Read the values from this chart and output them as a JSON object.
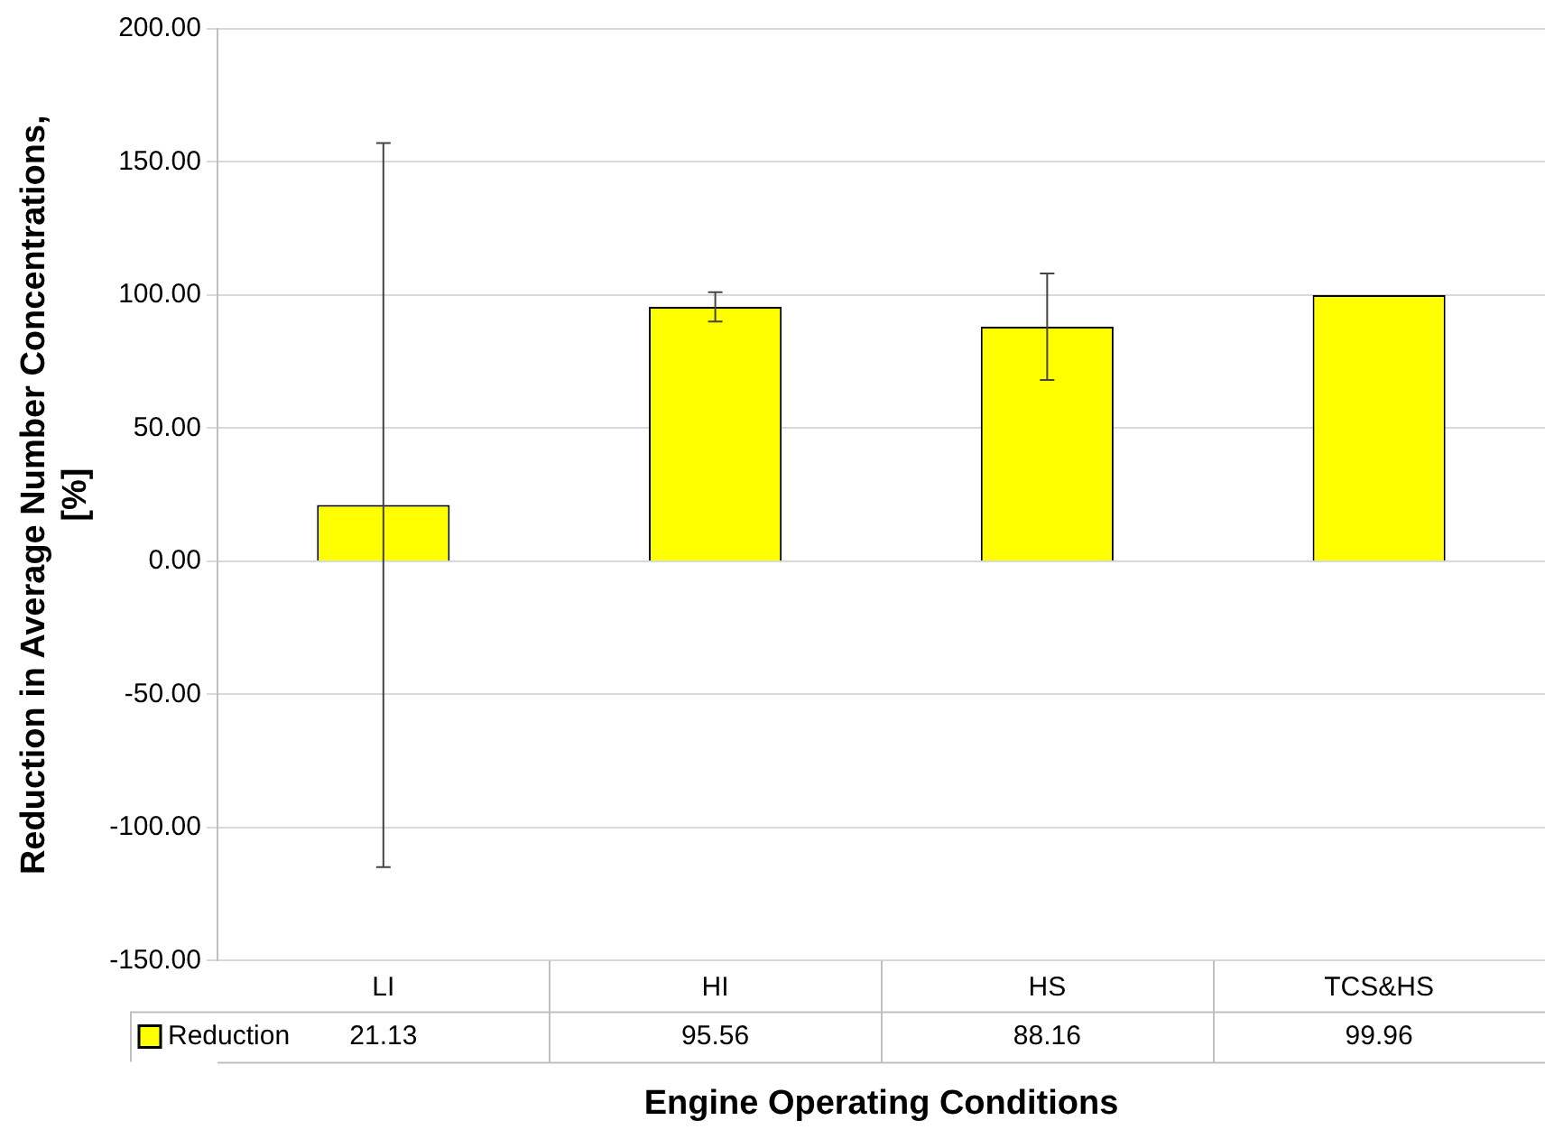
{
  "chart_data": {
    "type": "bar",
    "xlabel": "Engine Operating Conditions",
    "ylabel": "Reduction in Average Number Concentrations, [%]",
    "categories": [
      "LI",
      "HI",
      "HS",
      "TCS&HS"
    ],
    "series": [
      {
        "name": "Reduction",
        "color": "#ffff00",
        "values": [
          21.13,
          95.56,
          88.16,
          99.96
        ],
        "errors": [
          136,
          5.5,
          20,
          null
        ]
      }
    ],
    "ylim": [
      -150,
      200
    ],
    "yticks": [
      {
        "value": -150,
        "label": "-150.00"
      },
      {
        "value": -100,
        "label": "-100.00"
      },
      {
        "value": -50,
        "label": "-50.00"
      },
      {
        "value": 0,
        "label": "0.00"
      },
      {
        "value": 50,
        "label": "50.00"
      },
      {
        "value": 100,
        "label": "100.00"
      },
      {
        "value": 150,
        "label": "150.00"
      },
      {
        "value": 200,
        "label": "200.00"
      }
    ],
    "grid": "y",
    "data_labels": true
  }
}
